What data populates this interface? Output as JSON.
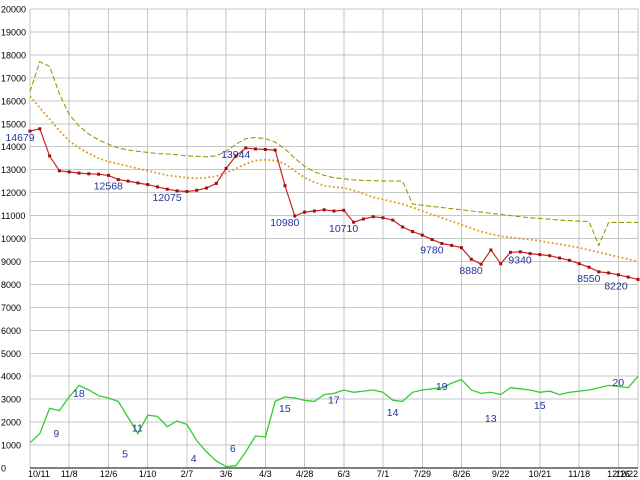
{
  "chart_data": {
    "type": "line",
    "title": "",
    "xlabel": "",
    "ylabel": "",
    "ylim": [
      0,
      20000
    ],
    "y_tick_step": 1000,
    "grid": true,
    "weeks": 63,
    "background": "#ffffff",
    "grid_color": "#c6c6c6",
    "axis_color": "#000000",
    "annotation_color": "#223399",
    "x_tick_labels": [
      {
        "label": "10/11",
        "i": 0
      },
      {
        "label": "11/8",
        "i": 4
      },
      {
        "label": "12/6",
        "i": 8
      },
      {
        "label": "1/10",
        "i": 12
      },
      {
        "label": "2/7",
        "i": 16
      },
      {
        "label": "3/6",
        "i": 20
      },
      {
        "label": "4/3",
        "i": 24
      },
      {
        "label": "4/28",
        "i": 28
      },
      {
        "label": "6/3",
        "i": 32
      },
      {
        "label": "7/1",
        "i": 36
      },
      {
        "label": "7/29",
        "i": 40
      },
      {
        "label": "8/26",
        "i": 44
      },
      {
        "label": "9/22",
        "i": 48
      },
      {
        "label": "10/21",
        "i": 52
      },
      {
        "label": "11/18",
        "i": 56
      },
      {
        "label": "12/16",
        "i": 60
      },
      {
        "label": "12/22",
        "i": 62
      }
    ],
    "series": [
      {
        "name": "price",
        "style": "solid-markers",
        "color": "#cc2222",
        "marker_color": "#991111",
        "values": [
          14679,
          14780,
          13600,
          12950,
          12900,
          12850,
          12820,
          12800,
          12750,
          12568,
          12500,
          12420,
          12350,
          12250,
          12150,
          12075,
          12050,
          12100,
          12200,
          12400,
          13050,
          13600,
          13944,
          13900,
          13880,
          13850,
          12300,
          10980,
          11150,
          11200,
          11250,
          11200,
          11230,
          10710,
          10850,
          10950,
          10900,
          10800,
          10500,
          10300,
          10150,
          9950,
          9780,
          9700,
          9600,
          9100,
          8880,
          9500,
          8900,
          9400,
          9420,
          9340,
          9300,
          9250,
          9150,
          9050,
          8900,
          8750,
          8550,
          8500,
          8420,
          8320,
          8220
        ]
      },
      {
        "name": "ma-short",
        "style": "dotted",
        "color": "#dd9922",
        "values": [
          16200,
          15700,
          15200,
          14700,
          14250,
          13950,
          13700,
          13500,
          13350,
          13250,
          13150,
          13050,
          12950,
          12850,
          12750,
          12700,
          12650,
          12620,
          12650,
          12720,
          12850,
          13050,
          13250,
          13400,
          13430,
          13400,
          13250,
          12950,
          12650,
          12450,
          12300,
          12250,
          12200,
          12100,
          11950,
          11800,
          11700,
          11600,
          11500,
          11350,
          11200,
          11050,
          10900,
          10750,
          10600,
          10450,
          10300,
          10200,
          10100,
          10050,
          10000,
          9950,
          9900,
          9820,
          9750,
          9680,
          9600,
          9500,
          9400,
          9300,
          9200,
          9100,
          9000
        ]
      },
      {
        "name": "ma-long",
        "style": "dashed",
        "color": "#999900",
        "values": [
          16400,
          17700,
          17500,
          16300,
          15400,
          14900,
          14550,
          14300,
          14100,
          13950,
          13850,
          13800,
          13750,
          13700,
          13680,
          13650,
          13600,
          13580,
          13560,
          13600,
          13800,
          14100,
          14350,
          14400,
          14350,
          14200,
          13900,
          13500,
          13150,
          12900,
          12750,
          12650,
          12600,
          12550,
          12530,
          12520,
          12510,
          12505,
          12500,
          11500,
          11450,
          11400,
          11350,
          11300,
          11250,
          11200,
          11150,
          11100,
          11050,
          11000,
          10950,
          10900,
          10870,
          10840,
          10800,
          10780,
          10760,
          10740,
          9700,
          10700,
          10700,
          10700,
          10700
        ]
      },
      {
        "name": "lower-line",
        "style": "solid",
        "color": "#33cc33",
        "values": [
          1100,
          1500,
          2600,
          2500,
          3100,
          3600,
          3400,
          3150,
          3050,
          2900,
          2200,
          1500,
          2300,
          2250,
          1800,
          2050,
          1900,
          1200,
          700,
          300,
          60,
          100,
          700,
          1400,
          1350,
          2900,
          3100,
          3050,
          2950,
          2900,
          3200,
          3250,
          3400,
          3300,
          3350,
          3400,
          3300,
          2950,
          2900,
          3300,
          3400,
          3450,
          3500,
          3700,
          3850,
          3400,
          3250,
          3300,
          3200,
          3500,
          3450,
          3400,
          3300,
          3350,
          3200,
          3300,
          3350,
          3400,
          3500,
          3600,
          3550,
          3500,
          4000
        ]
      }
    ],
    "price_labels": [
      {
        "text": "14679",
        "i": 0,
        "v": 14679
      },
      {
        "text": "12568",
        "i": 9,
        "v": 12568
      },
      {
        "text": "12075",
        "i": 15,
        "v": 12075
      },
      {
        "text": "13944",
        "i": 22,
        "v": 13944
      },
      {
        "text": "10980",
        "i": 27,
        "v": 10980
      },
      {
        "text": "10710",
        "i": 33,
        "v": 10710
      },
      {
        "text": "9780",
        "i": 42,
        "v": 9780
      },
      {
        "text": "8880",
        "i": 46,
        "v": 8880
      },
      {
        "text": "9340",
        "i": 51,
        "v": 9340
      },
      {
        "text": "8550",
        "i": 58,
        "v": 8550
      },
      {
        "text": "8220",
        "i": 62,
        "v": 8220
      }
    ],
    "lower_labels": [
      {
        "text": "9",
        "i": 3,
        "v": 1350
      },
      {
        "text": "18",
        "i": 5,
        "v": 3100
      },
      {
        "text": "5",
        "i": 10,
        "v": 450
      },
      {
        "text": "11",
        "i": 11,
        "v": 1600
      },
      {
        "text": "4",
        "i": 17,
        "v": 260
      },
      {
        "text": "6",
        "i": 21,
        "v": 700
      },
      {
        "text": "15",
        "i": 26,
        "v": 2450
      },
      {
        "text": "17",
        "i": 31,
        "v": 2800
      },
      {
        "text": "14",
        "i": 37,
        "v": 2270
      },
      {
        "text": "19",
        "i": 42,
        "v": 3400
      },
      {
        "text": "13",
        "i": 47,
        "v": 2000
      },
      {
        "text": "15",
        "i": 52,
        "v": 2570
      },
      {
        "text": "20",
        "i": 60,
        "v": 3570
      }
    ]
  }
}
